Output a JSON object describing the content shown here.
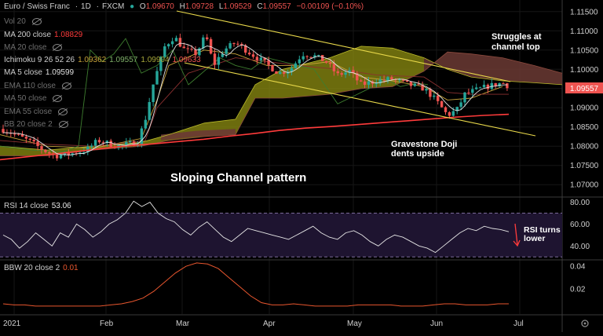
{
  "symbol": {
    "name": "Euro / Swiss Franc",
    "interval": "1D",
    "exchange": "FXCM"
  },
  "ohlc": {
    "o_label": "O",
    "o": "1.09670",
    "h_label": "H",
    "h": "1.09728",
    "l_label": "L",
    "l": "1.09529",
    "c_label": "C",
    "c": "1.09557",
    "change": "−0.00109 (−0.10%)"
  },
  "indicators": [
    {
      "label": "Vol 20",
      "value": "",
      "hidden": true
    },
    {
      "label": "MA 200 close",
      "value": "1.08829",
      "hidden": false
    },
    {
      "label": "MA 20 close",
      "value": "",
      "hidden": true
    },
    {
      "label": "Ichimoku 9 26 52 26",
      "values": [
        "1.09362",
        "1.09557",
        "1.09904",
        "1.09633"
      ],
      "hidden": false
    },
    {
      "label": "MA 5 close",
      "value": "1.09599",
      "hidden": false
    },
    {
      "label": "EMA 110 close",
      "value": "",
      "hidden": true
    },
    {
      "label": "MA 50 close",
      "value": "",
      "hidden": true
    },
    {
      "label": "EMA 55 close",
      "value": "",
      "hidden": true
    },
    {
      "label": "BB 20 close 2",
      "value": "",
      "hidden": true
    }
  ],
  "rsi_label": {
    "name": "RSI 14 close",
    "value": "53.06"
  },
  "bbw_label": {
    "name": "BBW 20 close 2",
    "value": "0.01"
  },
  "annotations": [
    "Struggles at channel top",
    "Gravestone Doji dents upside",
    "Sloping Channel pattern",
    "RSI turns lower"
  ],
  "price_tag": "1.09557",
  "colors": {
    "bg": "#000000",
    "up": "#26a69a",
    "down": "#ef5350",
    "ma200": "#ff3b3b",
    "ma5": "#e0e0e0",
    "cloud_bull": "#8f8f12",
    "cloud_bear": "#6b3a34",
    "channel": "#e8d84a",
    "tenkan": "#c8a33a",
    "kijun": "#8b3030",
    "chikou": "#3e7d2f",
    "rsi_line": "#e6e6e6",
    "rsi_band": "#1e1430",
    "bbw_line": "#e8562e"
  },
  "chart_data": [
    {
      "type": "candlestick",
      "title": "Euro / Swiss Franc · 1D · FXCM",
      "x_ticks": [
        "2021",
        "Feb",
        "Mar",
        "Apr",
        "May",
        "Jun",
        "Jul"
      ],
      "y_ticks": [
        1.07,
        1.075,
        1.08,
        1.085,
        1.09,
        1.095,
        1.1,
        1.105,
        1.11,
        1.115
      ],
      "ylim": [
        1.068,
        1.117
      ],
      "series": [
        {
          "name": "MA 200 close",
          "values": [
            1.0765,
            1.0772,
            1.0779,
            1.0786,
            1.0794,
            1.0801,
            1.0806,
            1.0812,
            1.0818,
            1.0826,
            1.0833,
            1.0841,
            1.0847,
            1.0851,
            1.0856,
            1.0861,
            1.0866,
            1.0871,
            1.0876,
            1.088,
            1.0883
          ]
        },
        {
          "name": "MA 5 close",
          "values": [
            1.0815,
            1.079,
            1.0782,
            1.0795,
            1.08,
            1.0825,
            1.0865,
            1.0975,
            1.1055,
            1.1025,
            1.106,
            1.101,
            1.1,
            1.102,
            1.0985,
            1.096,
            1.0955,
            1.0905,
            1.0935,
            1.096,
            1.096
          ]
        }
      ],
      "last_close": 1.09557
    },
    {
      "type": "line",
      "title": "RSI 14 close",
      "ylim": [
        28,
        84
      ],
      "y_ticks": [
        40,
        60,
        80
      ],
      "band": [
        30,
        70
      ],
      "values": [
        50,
        46,
        38,
        44,
        52,
        46,
        40,
        52,
        48,
        60,
        55,
        48,
        53,
        60,
        64,
        70,
        81,
        76,
        80,
        70,
        65,
        62,
        55,
        50,
        57,
        62,
        55,
        48,
        44,
        50,
        56,
        54,
        52,
        50,
        48,
        46,
        50,
        54,
        58,
        52,
        48,
        46,
        52,
        54,
        50,
        44,
        40,
        46,
        50,
        48,
        44,
        40,
        38,
        34,
        40,
        46,
        52,
        56,
        54,
        58,
        56,
        55,
        53
      ]
    },
    {
      "type": "line",
      "title": "BBW 20 close 2",
      "ylim": [
        -0.002,
        0.045
      ],
      "y_ticks": [
        0.02,
        0.04
      ],
      "values": [
        0.007,
        0.006,
        0.006,
        0.005,
        0.005,
        0.005,
        0.005,
        0.005,
        0.005,
        0.005,
        0.006,
        0.007,
        0.009,
        0.012,
        0.018,
        0.026,
        0.034,
        0.04,
        0.043,
        0.042,
        0.038,
        0.03,
        0.022,
        0.014,
        0.008,
        0.006,
        0.006,
        0.007,
        0.006,
        0.005,
        0.005,
        0.005,
        0.005,
        0.006,
        0.006,
        0.006,
        0.006,
        0.005,
        0.005,
        0.005,
        0.006,
        0.007,
        0.007,
        0.006,
        0.006,
        0.006,
        0.007,
        0.007
      ]
    }
  ]
}
